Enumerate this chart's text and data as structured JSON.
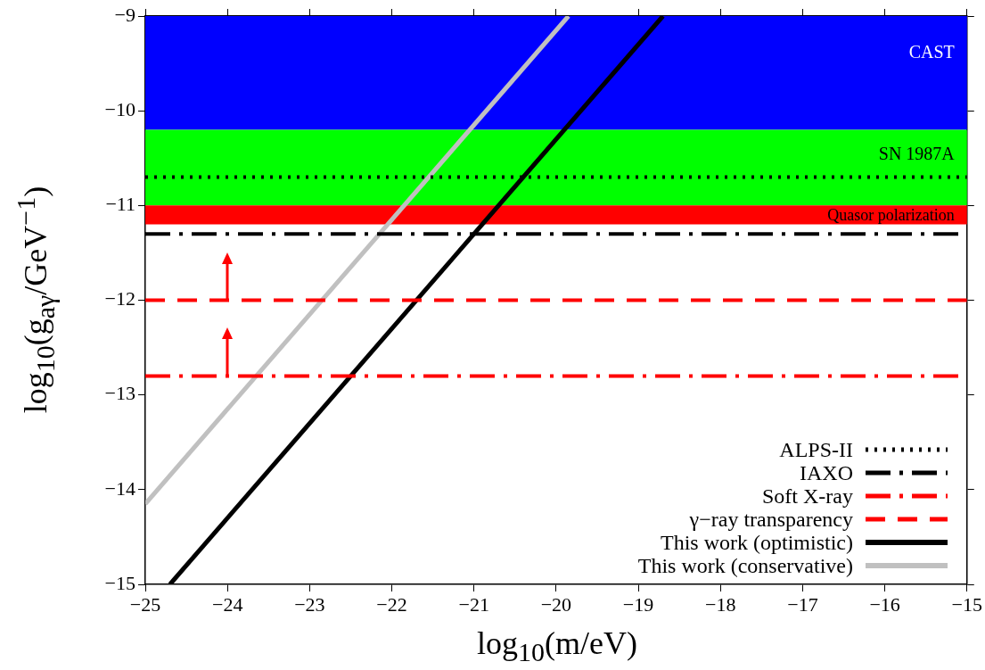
{
  "chart_data": {
    "type": "line",
    "xlabel": "log$_{10}$(m/eV)",
    "ylabel": "log$_{10}$(g$_{aγ}$/GeV$^{−1}$)",
    "xlim": [
      -25,
      -15
    ],
    "xticks": [
      -25,
      -24,
      -23,
      -22,
      -21,
      -20,
      -19,
      -18,
      -17,
      -16,
      -15
    ],
    "ylim": [
      -15,
      -9
    ],
    "yticks": [
      -15,
      -14,
      -13,
      -12,
      -11,
      -10,
      -9
    ],
    "grid": false,
    "legend": "bottom right",
    "marker": "none",
    "bands": [
      {
        "axis": "y",
        "from": -10.2,
        "to": -9,
        "label": "CAST",
        "color": "#0000ff"
      },
      {
        "axis": "y",
        "from": -11,
        "to": -10.2,
        "label": "SN 1987A",
        "color": "#00ff00"
      },
      {
        "axis": "y",
        "from": -11.2,
        "to": -11,
        "label": "Quasor polarization",
        "color": "#ff0000"
      }
    ],
    "series": [
      {
        "name": "ALPS-II",
        "color": "#000000",
        "line_style": "dotted",
        "x": [
          -25,
          -15
        ],
        "values": [
          -10.7,
          -10.7
        ]
      },
      {
        "name": "IAXO",
        "color": "#000000",
        "line_style": "dashdot",
        "x": [
          -25,
          -15
        ],
        "values": [
          -11.3,
          -11.3
        ]
      },
      {
        "name": "Soft X-ray",
        "color": "#ff0000",
        "line_style": "dashdot",
        "x": [
          -25,
          -15
        ],
        "values": [
          -12.8,
          -12.8
        ]
      },
      {
        "name": "γ−ray transparency",
        "color": "#ff0000",
        "line_style": "dashed",
        "x": [
          -25,
          -15
        ],
        "values": [
          -12,
          -12
        ]
      },
      {
        "name": "This work (optimistic)",
        "color": "#000000",
        "line_style": "solid",
        "x": [
          -24.7,
          -18.7
        ],
        "values": [
          -15,
          -9
        ]
      },
      {
        "name": "This work (conservative)",
        "color": "#c0c0c0",
        "line_style": "solid",
        "x": [
          -25,
          -19.85
        ],
        "values": [
          -14.15,
          -9
        ]
      }
    ]
  }
}
